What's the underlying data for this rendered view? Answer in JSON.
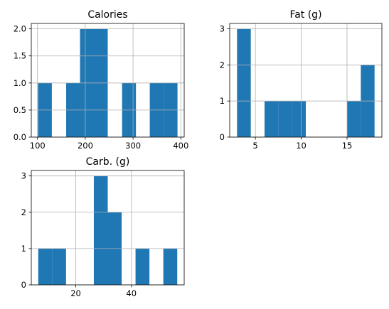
{
  "chart_data": [
    {
      "type": "bar",
      "title": "Calories",
      "xlabel": "",
      "ylabel": "",
      "xlim": [
        87,
        407
      ],
      "ylim": [
        0,
        2.1
      ],
      "xticks": [
        100,
        200,
        300,
        400
      ],
      "yticks": [
        0.0,
        0.5,
        1.0,
        1.5,
        2.0
      ],
      "ytick_labels": [
        "0.0",
        "0.5",
        "1.0",
        "1.5",
        "2.0"
      ],
      "grid": true,
      "bins": [
        {
          "x0": 101,
          "x1": 130,
          "count": 1
        },
        {
          "x0": 130,
          "x1": 160,
          "count": 0
        },
        {
          "x0": 160,
          "x1": 189,
          "count": 1
        },
        {
          "x0": 189,
          "x1": 218,
          "count": 2
        },
        {
          "x0": 218,
          "x1": 247,
          "count": 2
        },
        {
          "x0": 247,
          "x1": 277,
          "count": 0
        },
        {
          "x0": 277,
          "x1": 306,
          "count": 1
        },
        {
          "x0": 306,
          "x1": 335,
          "count": 0
        },
        {
          "x0": 335,
          "x1": 364,
          "count": 1
        },
        {
          "x0": 364,
          "x1": 393,
          "count": 1
        }
      ]
    },
    {
      "type": "bar",
      "title": "Fat (g)",
      "xlabel": "",
      "ylabel": "",
      "xlim": [
        2.2,
        18.8
      ],
      "ylim": [
        0,
        3.15
      ],
      "xticks": [
        5,
        10,
        15
      ],
      "yticks": [
        0,
        1,
        2,
        3
      ],
      "ytick_labels": [
        "0",
        "1",
        "2",
        "3"
      ],
      "grid": true,
      "bins": [
        {
          "x0": 3.0,
          "x1": 4.5,
          "count": 3
        },
        {
          "x0": 4.5,
          "x1": 6.0,
          "count": 0
        },
        {
          "x0": 6.0,
          "x1": 7.5,
          "count": 1
        },
        {
          "x0": 7.5,
          "x1": 9.0,
          "count": 1
        },
        {
          "x0": 9.0,
          "x1": 10.5,
          "count": 1
        },
        {
          "x0": 10.5,
          "x1": 12.0,
          "count": 0
        },
        {
          "x0": 12.0,
          "x1": 13.5,
          "count": 0
        },
        {
          "x0": 13.5,
          "x1": 15.0,
          "count": 0
        },
        {
          "x0": 15.0,
          "x1": 16.5,
          "count": 1
        },
        {
          "x0": 16.5,
          "x1": 18.0,
          "count": 2
        }
      ]
    },
    {
      "type": "bar",
      "title": "Carb. (g)",
      "xlabel": "",
      "ylabel": "",
      "xlim": [
        4,
        59
      ],
      "ylim": [
        0,
        3.15
      ],
      "xticks": [
        20,
        40
      ],
      "yticks": [
        0,
        1,
        2,
        3
      ],
      "ytick_labels": [
        "0",
        "1",
        "2",
        "3"
      ],
      "grid": true,
      "bins": [
        {
          "x0": 6.5,
          "x1": 11.5,
          "count": 1
        },
        {
          "x0": 11.5,
          "x1": 16.5,
          "count": 1
        },
        {
          "x0": 16.5,
          "x1": 21.5,
          "count": 0
        },
        {
          "x0": 21.5,
          "x1": 26.5,
          "count": 0
        },
        {
          "x0": 26.5,
          "x1": 31.5,
          "count": 3
        },
        {
          "x0": 31.5,
          "x1": 36.5,
          "count": 2
        },
        {
          "x0": 36.5,
          "x1": 41.5,
          "count": 0
        },
        {
          "x0": 41.5,
          "x1": 46.5,
          "count": 1
        },
        {
          "x0": 46.5,
          "x1": 51.5,
          "count": 0
        },
        {
          "x0": 51.5,
          "x1": 56.5,
          "count": 1
        }
      ]
    }
  ],
  "colors": {
    "bar": "#1f77b4",
    "grid": "#b0b0b0",
    "axis": "#000000",
    "background": "#ffffff"
  }
}
